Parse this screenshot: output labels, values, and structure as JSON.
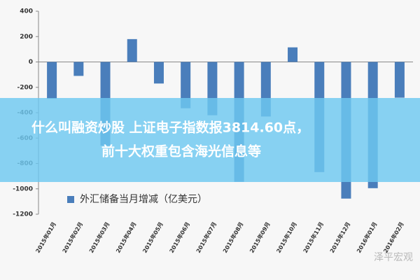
{
  "chart_data": {
    "type": "bar",
    "categories": [
      "2015年01月",
      "2015年02月",
      "2015年03月",
      "2015年04月",
      "2015年05月",
      "2015年06月",
      "2015年07月",
      "2015年08月",
      "2015年09月",
      "2015年10月",
      "2015年11月",
      "2015年12月",
      "2016年01月",
      "2016年02月"
    ],
    "series": [
      {
        "name": "外汇储备当月增减（亿美元）",
        "color": "#4a7ebb",
        "values": [
          -290,
          -110,
          -660,
          180,
          -170,
          -365,
          -420,
          -945,
          -430,
          115,
          -868,
          -1077,
          -995,
          -282
        ]
      }
    ],
    "ylim": [
      -1200,
      400
    ],
    "yticks": [
      -1200,
      -1000,
      -800,
      -600,
      -400,
      -200,
      0,
      200,
      400
    ],
    "grid": false,
    "legend": "bottom-left"
  },
  "overlay": {
    "lines": [
      "什么叫融资炒股 上证电子指数报3814.60点，",
      "前十大权重包含海光信息等"
    ]
  },
  "watermark": "泽平宏观"
}
